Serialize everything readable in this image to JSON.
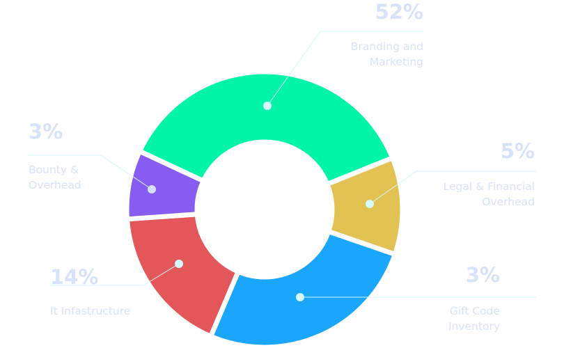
{
  "chart_data": {
    "type": "pie",
    "variant": "donut",
    "categories": [
      "Branding and Marketing",
      "Legal & Financial Overhead",
      "Gift Code Inventory",
      "It Infastructure",
      "Bounty & Overhead"
    ],
    "values": [
      52,
      5,
      3,
      14,
      3
    ],
    "value_labels": [
      "52%",
      "5%",
      "3%",
      "14%",
      "3%"
    ],
    "colors": [
      "#00f5a6",
      "#e2c253",
      "#19a6fc",
      "#e35659",
      "#865cf1"
    ],
    "label_color": "#d8e3fb",
    "legend": "none"
  }
}
